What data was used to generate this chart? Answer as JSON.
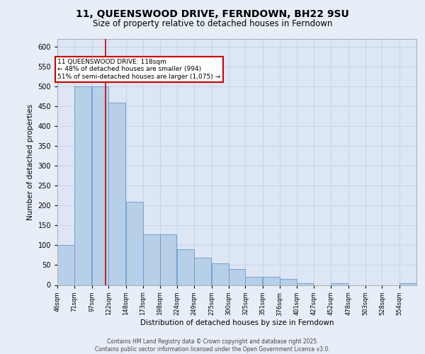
{
  "title_line1": "11, QUEENSWOOD DRIVE, FERNDOWN, BH22 9SU",
  "title_line2": "Size of property relative to detached houses in Ferndown",
  "xlabel": "Distribution of detached houses by size in Ferndown",
  "ylabel": "Number of detached properties",
  "footnote": "Contains HM Land Registry data © Crown copyright and database right 2025.\nContains public sector information licensed under the Open Government Licence v3.0.",
  "annotation_title": "11 QUEENSWOOD DRIVE: 118sqm",
  "annotation_line2": "← 48% of detached houses are smaller (994)",
  "annotation_line3": "51% of semi-detached houses are larger (1,075) →",
  "property_size": 118,
  "bar_color": "#b8cfe8",
  "bar_edge_color": "#6699cc",
  "redline_color": "#cc0000",
  "bg_color": "#e8eef8",
  "plot_bg_color": "#dce6f5",
  "grid_color": "#c8d4e8",
  "categories": [
    "46sqm",
    "71sqm",
    "97sqm",
    "122sqm",
    "148sqm",
    "173sqm",
    "198sqm",
    "224sqm",
    "249sqm",
    "275sqm",
    "300sqm",
    "325sqm",
    "351sqm",
    "376sqm",
    "401sqm",
    "427sqm",
    "452sqm",
    "478sqm",
    "503sqm",
    "528sqm",
    "554sqm"
  ],
  "bin_edges": [
    46,
    71,
    97,
    122,
    148,
    173,
    198,
    224,
    249,
    275,
    300,
    325,
    351,
    376,
    401,
    427,
    452,
    478,
    503,
    528,
    554
  ],
  "bin_width": 25,
  "values": [
    100,
    500,
    500,
    460,
    210,
    128,
    128,
    90,
    68,
    55,
    40,
    20,
    20,
    15,
    5,
    0,
    5,
    0,
    0,
    0,
    5
  ],
  "ylim": [
    0,
    620
  ],
  "yticks": [
    0,
    50,
    100,
    150,
    200,
    250,
    300,
    350,
    400,
    450,
    500,
    550,
    600
  ]
}
